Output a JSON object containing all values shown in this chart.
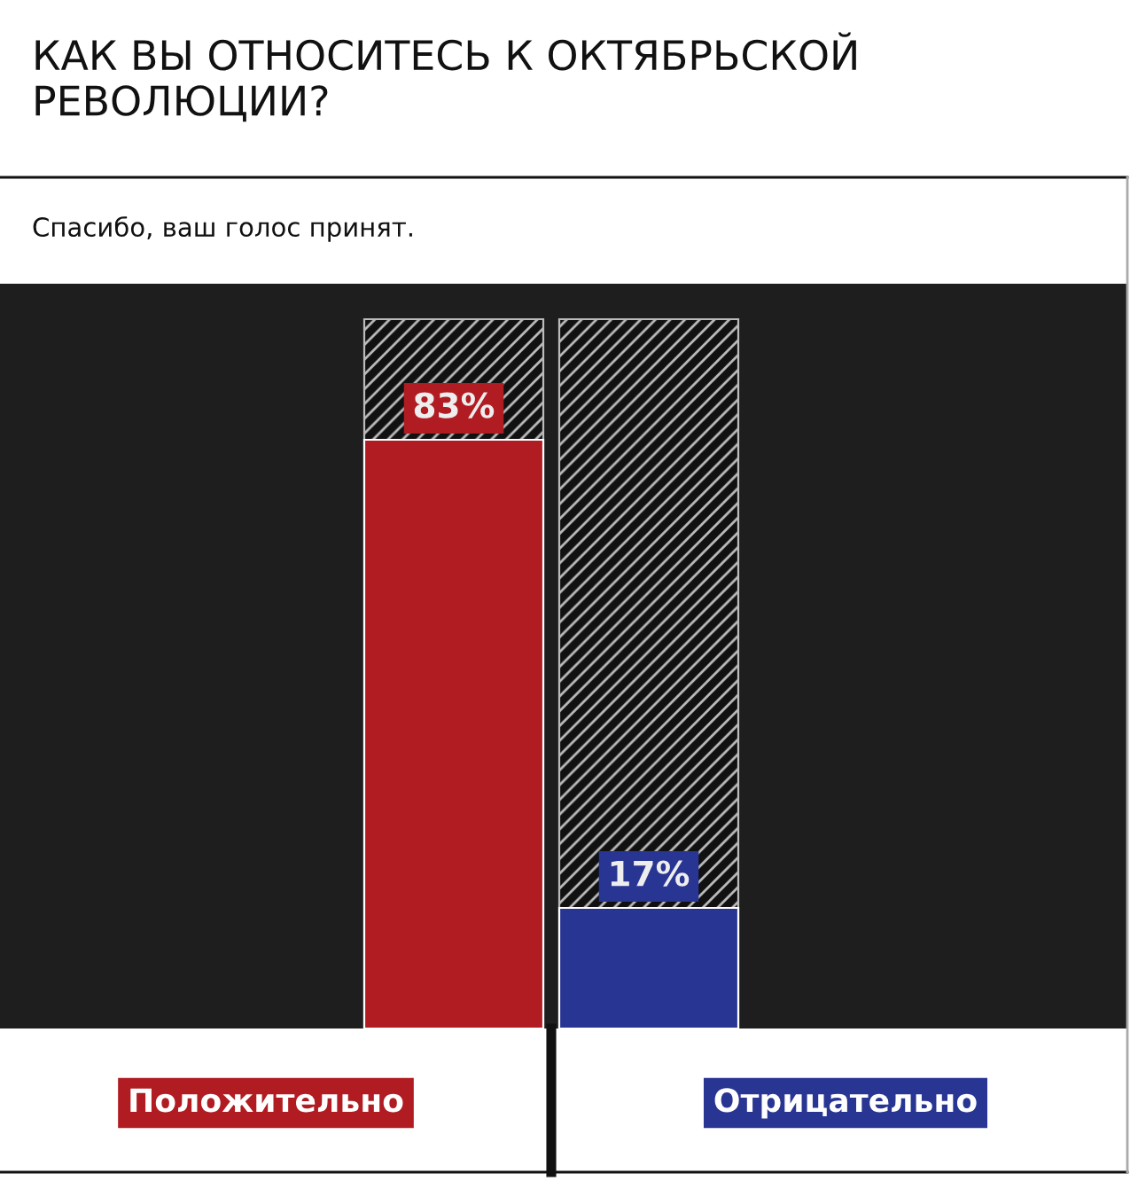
{
  "chart_data": {
    "type": "bar",
    "title": "КАК ВЫ ОТНОСИТЕСЬ К ОКТЯБРЬСКОЙ РЕВОЛЮЦИИ?",
    "subtitle": "Спасибо, ваш голос принят.",
    "categories": [
      "Положительно",
      "Отрицательно"
    ],
    "values": [
      83,
      17
    ],
    "colors": [
      "#b01c22",
      "#283593"
    ],
    "value_labels": [
      "83%",
      "17%"
    ],
    "ylim": [
      0,
      100
    ]
  }
}
